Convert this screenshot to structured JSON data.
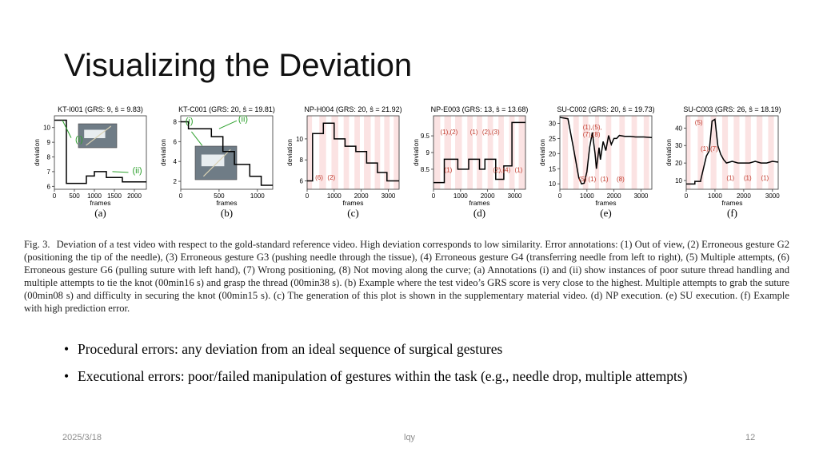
{
  "slide": {
    "title": "Visualizing the Deviation",
    "footer": {
      "date": "2025/3/18",
      "author": "lqy",
      "page": "12"
    }
  },
  "caption": {
    "label": "Fig. 3.",
    "text": "Deviation of a test video with respect to the gold-standard reference video. High deviation corresponds to low similarity. Error annotations: (1) Out of view, (2) Erroneous gesture G2 (positioning the tip of the needle), (3) Erroneous gesture G3 (pushing needle through the tissue), (4) Erroneous gesture G4 (transferring needle from left to right), (5) Multiple attempts, (6) Erroneous gesture G6 (pulling suture with left hand), (7) Wrong positioning, (8) Not moving along the curve; (a) Annotations (i) and (ii) show instances of poor suture thread handling and multiple attempts to tie the knot (00min16 s) and grasp the thread (00min38 s). (b) Example where the test video’s GRS score is very close to the highest. Multiple attempts to grab the suture (00min08 s) and difficulty in securing the knot (00min15 s). (c) The generation of this plot is shown in the supplementary material video. (d) NP execution. (e) SU execution. (f) Example with high prediction error."
  },
  "bullets": [
    "Procedural errors: any deviation from an ideal sequence of surgical gestures",
    "Executional errors: poor/failed manipulation of gestures within the task (e.g., needle drop, multiple attempts)"
  ],
  "chart_data": [
    {
      "type": "line",
      "letter": "(a)",
      "title": "KT-I001 (GRS: 9, ŝ = 9.83)",
      "xlabel": "frames",
      "ylabel": "deviation",
      "xlim": [
        0,
        2300
      ],
      "ylim": [
        5.8,
        10.8
      ],
      "xticks": [
        0,
        500,
        1000,
        1500,
        2000
      ],
      "xtick_labels": [
        "0",
        "500",
        "1000",
        "1500",
        "2000"
      ],
      "yticks": [
        6,
        7,
        8,
        9,
        10
      ],
      "x": [
        0,
        300,
        300,
        800,
        800,
        1000,
        1000,
        1300,
        1300,
        1700,
        1700,
        2300
      ],
      "y": [
        10.5,
        10.5,
        6.2,
        6.2,
        6.7,
        6.7,
        7.0,
        7.0,
        6.6,
        6.6,
        6.3,
        6.3
      ],
      "bands": [],
      "annotations": [
        {
          "text": "(i)",
          "x": 520,
          "y": 9.0,
          "style": "green"
        },
        {
          "text": "(ii)",
          "x": 1950,
          "y": 6.9,
          "style": "green"
        }
      ],
      "inset": true
    },
    {
      "type": "line",
      "letter": "(b)",
      "title": "KT-C001 (GRS: 20, ŝ = 19.81)",
      "xlabel": "frames",
      "ylabel": "deviation",
      "xlim": [
        0,
        1200
      ],
      "ylim": [
        1.2,
        8.6
      ],
      "xticks": [
        0,
        500,
        1000
      ],
      "xtick_labels": [
        "0",
        "500",
        "1000"
      ],
      "yticks": [
        2,
        4,
        6,
        8
      ],
      "x": [
        0,
        100,
        100,
        400,
        400,
        550,
        550,
        700,
        700,
        900,
        900,
        1050,
        1050,
        1200
      ],
      "y": [
        8,
        8,
        7.3,
        7.3,
        6.5,
        6.5,
        5.0,
        5.0,
        3.7,
        3.7,
        2.5,
        2.5,
        1.6,
        1.6
      ],
      "bands": [],
      "annotations": [
        {
          "text": "(i)",
          "x": 60,
          "y": 7.8,
          "style": "green"
        },
        {
          "text": "(ii)",
          "x": 750,
          "y": 8.0,
          "style": "green"
        }
      ],
      "inset": true
    },
    {
      "type": "line",
      "letter": "(c)",
      "title": "NP-H004 (GRS: 20, ŝ = 21.92)",
      "xlabel": "frames",
      "ylabel": "deviation",
      "xlim": [
        0,
        3400
      ],
      "ylim": [
        5.2,
        12.2
      ],
      "xticks": [
        0,
        1000,
        2000,
        3000
      ],
      "xtick_labels": [
        "0",
        "1000",
        "2000",
        "3000"
      ],
      "yticks": [
        6,
        8,
        10
      ],
      "x": [
        0,
        200,
        200,
        600,
        600,
        1000,
        1000,
        1400,
        1400,
        1800,
        1800,
        2200,
        2200,
        2600,
        2600,
        2950,
        2950,
        3400
      ],
      "y": [
        6.0,
        6.0,
        10.5,
        10.5,
        11.5,
        11.5,
        10.0,
        10.0,
        9.3,
        9.3,
        8.8,
        8.8,
        7.7,
        7.7,
        6.8,
        6.8,
        6.0,
        6.0
      ],
      "bands": [
        [
          0,
          180
        ],
        [
          450,
          700
        ],
        [
          900,
          1150
        ],
        [
          1350,
          1550
        ],
        [
          1750,
          1950
        ],
        [
          2100,
          2350
        ],
        [
          2500,
          2700
        ],
        [
          2850,
          3050
        ],
        [
          3200,
          3400
        ]
      ],
      "annotations": [
        {
          "text": "(6)",
          "x": 300,
          "y": 6.1,
          "style": "red"
        },
        {
          "text": "(2)",
          "x": 750,
          "y": 6.1,
          "style": "red"
        }
      ],
      "inset": false
    },
    {
      "type": "line",
      "letter": "(d)",
      "title": "NP-E003 (GRS: 13, ŝ = 13.68)",
      "xlabel": "frames",
      "ylabel": "deviation",
      "xlim": [
        0,
        3400
      ],
      "ylim": [
        7.9,
        10.1
      ],
      "xticks": [
        0,
        1000,
        2000,
        3000
      ],
      "xtick_labels": [
        "0",
        "1000",
        "2000",
        "3000"
      ],
      "yticks": [
        8.5,
        9.0,
        9.5
      ],
      "x": [
        0,
        400,
        400,
        900,
        900,
        1300,
        1300,
        1700,
        1700,
        1900,
        1900,
        2300,
        2300,
        2600,
        2600,
        2900,
        2900,
        3400
      ],
      "y": [
        8.1,
        8.1,
        8.8,
        8.8,
        8.5,
        8.5,
        8.8,
        8.8,
        8.5,
        8.5,
        8.8,
        8.8,
        8.2,
        8.2,
        8.6,
        8.6,
        9.9,
        9.9
      ],
      "bands": [
        [
          0,
          250
        ],
        [
          400,
          650
        ],
        [
          800,
          1050
        ],
        [
          1250,
          1450
        ],
        [
          1600,
          1800
        ],
        [
          2000,
          2200
        ],
        [
          2400,
          2600
        ],
        [
          2800,
          3000
        ],
        [
          3150,
          3400
        ]
      ],
      "annotations": [
        {
          "text": "(1),(2)",
          "x": 250,
          "y": 9.55,
          "style": "red"
        },
        {
          "text": "(1)",
          "x": 1350,
          "y": 9.55,
          "style": "red"
        },
        {
          "text": "(2),(3)",
          "x": 1800,
          "y": 9.55,
          "style": "red"
        },
        {
          "text": "(1)",
          "x": 400,
          "y": 8.42,
          "style": "red"
        },
        {
          "text": "(2),(4)",
          "x": 2200,
          "y": 8.42,
          "style": "red"
        },
        {
          "text": "(1)",
          "x": 3000,
          "y": 8.42,
          "style": "red"
        }
      ],
      "inset": false
    },
    {
      "type": "line",
      "letter": "(e)",
      "title": "SU-C002 (GRS: 20, ŝ = 19.73)",
      "xlabel": "frames",
      "ylabel": "deviation",
      "xlim": [
        0,
        3400
      ],
      "ylim": [
        8.2,
        32.5
      ],
      "xticks": [
        0,
        1000,
        2000,
        3000
      ],
      "xtick_labels": [
        "0",
        "1000",
        "2000",
        "3000"
      ],
      "yticks": [
        10,
        15,
        20,
        25,
        30
      ],
      "x": [
        0,
        300,
        500,
        700,
        800,
        900,
        1000,
        1100,
        1200,
        1300,
        1350,
        1450,
        1500,
        1600,
        1700,
        1800,
        1900,
        2000,
        2100,
        2200,
        2400,
        2600,
        2800,
        3100,
        3400
      ],
      "y": [
        32,
        31.5,
        22,
        12,
        10,
        10.2,
        14,
        22,
        27,
        20,
        15,
        22,
        18,
        24,
        21,
        26,
        23,
        25,
        25,
        26,
        25.7,
        25.7,
        25.5,
        25.5,
        25.3
      ],
      "bands": [
        [
          100,
          300
        ],
        [
          500,
          700
        ],
        [
          850,
          1050
        ],
        [
          1300,
          1450
        ],
        [
          1700,
          1900
        ],
        [
          2200,
          2400
        ],
        [
          2650,
          2850
        ],
        [
          3100,
          3300
        ]
      ],
      "annotations": [
        {
          "text": "(1),(5),",
          "x": 850,
          "y": 28,
          "style": "red"
        },
        {
          "text": "(7),(8)",
          "x": 850,
          "y": 25.6,
          "style": "red"
        },
        {
          "text": "(5)",
          "x": 700,
          "y": 10.8,
          "style": "red"
        },
        {
          "text": "(1)",
          "x": 1050,
          "y": 10.8,
          "style": "red"
        },
        {
          "text": "(1)",
          "x": 1500,
          "y": 10.8,
          "style": "red"
        },
        {
          "text": "(8)",
          "x": 2100,
          "y": 10.8,
          "style": "red"
        }
      ],
      "inset": false
    },
    {
      "type": "line",
      "letter": "(f)",
      "title": "SU-C003 (GRS: 26, ŝ = 18.19)",
      "xlabel": "frames",
      "ylabel": "deviation",
      "xlim": [
        0,
        3200
      ],
      "ylim": [
        5,
        47
      ],
      "xticks": [
        0,
        1000,
        2000,
        3000
      ],
      "xtick_labels": [
        "0",
        "1000",
        "2000",
        "3000"
      ],
      "yticks": [
        10,
        20,
        30,
        40
      ],
      "x": [
        0,
        300,
        300,
        500,
        500,
        700,
        800,
        900,
        1000,
        1100,
        1200,
        1300,
        1400,
        1600,
        1800,
        2000,
        2200,
        2400,
        2600,
        2800,
        3000,
        3200
      ],
      "y": [
        8,
        8,
        9.5,
        9.5,
        10,
        24,
        27,
        44,
        45,
        30,
        25,
        22,
        20,
        21,
        20,
        20,
        20,
        21,
        20,
        20,
        21,
        20.5
      ],
      "bands": [
        [
          0,
          150
        ],
        [
          400,
          600
        ],
        [
          850,
          1050
        ],
        [
          1250,
          1450
        ],
        [
          1650,
          1850
        ],
        [
          2050,
          2250
        ],
        [
          2450,
          2650
        ],
        [
          2850,
          3050
        ]
      ],
      "annotations": [
        {
          "text": "(5)",
          "x": 300,
          "y": 42,
          "style": "red"
        },
        {
          "text": "(1),(7)",
          "x": 500,
          "y": 27,
          "style": "red"
        },
        {
          "text": "(1)",
          "x": 1400,
          "y": 10.2,
          "style": "red"
        },
        {
          "text": "(1)",
          "x": 2000,
          "y": 10.2,
          "style": "red"
        },
        {
          "text": "(1)",
          "x": 2600,
          "y": 10.2,
          "style": "red"
        }
      ],
      "inset": false
    }
  ]
}
